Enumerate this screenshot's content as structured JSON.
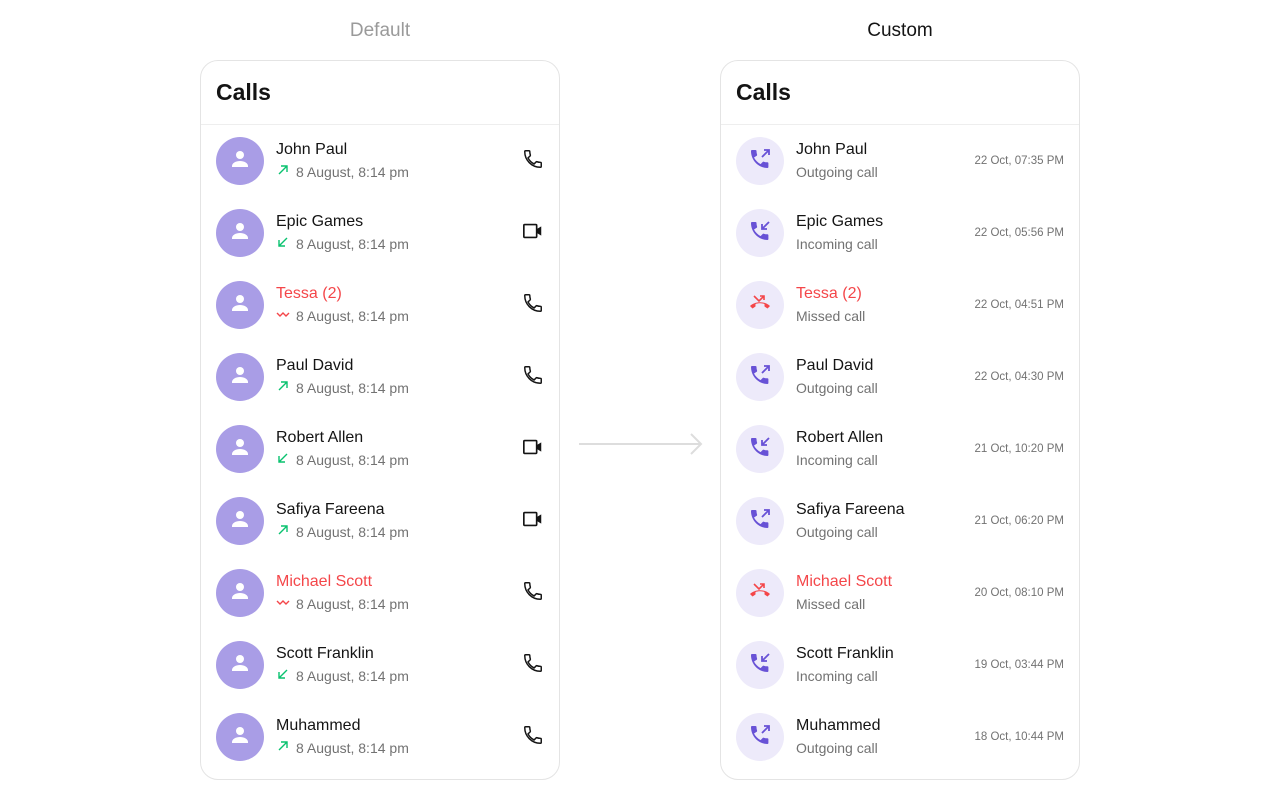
{
  "default": {
    "label": "Default",
    "title": "Calls",
    "items": [
      {
        "name": "John Paul",
        "date": "8 August, 8:14 pm",
        "direction": "outgoing",
        "call_type": "audio",
        "missed": false
      },
      {
        "name": "Epic Games",
        "date": "8 August, 8:14 pm",
        "direction": "incoming",
        "call_type": "video",
        "missed": false
      },
      {
        "name": "Tessa (2)",
        "date": "8 August, 8:14 pm",
        "direction": "missed",
        "call_type": "audio",
        "missed": true
      },
      {
        "name": "Paul David",
        "date": "8 August, 8:14 pm",
        "direction": "outgoing",
        "call_type": "audio",
        "missed": false
      },
      {
        "name": "Robert Allen",
        "date": "8 August, 8:14 pm",
        "direction": "incoming",
        "call_type": "video",
        "missed": false
      },
      {
        "name": "Safiya Fareena",
        "date": "8 August, 8:14 pm",
        "direction": "outgoing",
        "call_type": "video",
        "missed": false
      },
      {
        "name": "Michael Scott",
        "date": "8 August, 8:14 pm",
        "direction": "missed",
        "call_type": "audio",
        "missed": true
      },
      {
        "name": "Scott Franklin",
        "date": "8 August, 8:14 pm",
        "direction": "incoming",
        "call_type": "audio",
        "missed": false
      },
      {
        "name": "Muhammed",
        "date": "8 August, 8:14 pm",
        "direction": "outgoing",
        "call_type": "audio",
        "missed": false
      }
    ]
  },
  "custom": {
    "label": "Custom",
    "title": "Calls",
    "items": [
      {
        "name": "John Paul",
        "status": "Outgoing call",
        "time": "22 Oct, 07:35 PM",
        "direction": "outgoing",
        "missed": false
      },
      {
        "name": "Epic Games",
        "status": "Incoming call",
        "time": "22 Oct, 05:56 PM",
        "direction": "incoming",
        "missed": false
      },
      {
        "name": "Tessa (2)",
        "status": "Missed call",
        "time": "22 Oct, 04:51 PM",
        "direction": "missed",
        "missed": true
      },
      {
        "name": "Paul David",
        "status": "Outgoing call",
        "time": "22 Oct, 04:30 PM",
        "direction": "outgoing",
        "missed": false
      },
      {
        "name": "Robert Allen",
        "status": "Incoming call",
        "time": "21 Oct, 10:20 PM",
        "direction": "incoming",
        "missed": false
      },
      {
        "name": "Safiya Fareena",
        "status": "Outgoing call",
        "time": "21 Oct, 06:20 PM",
        "direction": "outgoing",
        "missed": false
      },
      {
        "name": "Michael Scott",
        "status": "Missed call",
        "time": "20 Oct, 08:10 PM",
        "direction": "missed",
        "missed": true
      },
      {
        "name": "Scott Franklin",
        "status": "Incoming call",
        "time": "19 Oct, 03:44 PM",
        "direction": "incoming",
        "missed": false
      },
      {
        "name": "Muhammed",
        "status": "Outgoing call",
        "time": "18 Oct, 10:44 PM",
        "direction": "outgoing",
        "missed": false
      }
    ]
  },
  "colors": {
    "avatar": "#a99de6",
    "accent": "#6852d6",
    "accent_bg": "#edeafa",
    "missed": "#f44649",
    "incoming_outgoing": "#09c26f"
  }
}
